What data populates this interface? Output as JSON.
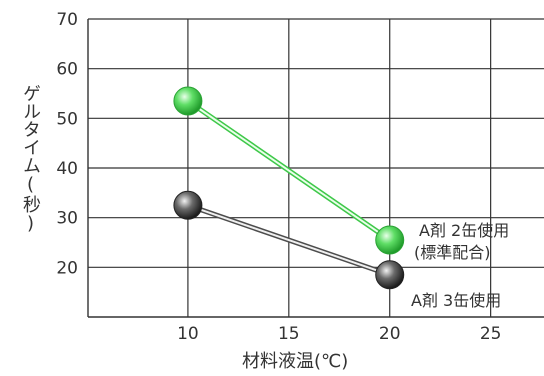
{
  "chart_data": {
    "type": "line",
    "xlabel": "材料液温(℃)",
    "ylabel": "ゲルタイム(秒)",
    "xlim": [
      5,
      27
    ],
    "ylim": [
      10,
      70
    ],
    "x_ticks": [
      10,
      15,
      20,
      25
    ],
    "y_ticks": [
      20,
      30,
      40,
      50,
      60,
      70
    ],
    "grid": true,
    "series": [
      {
        "name": "A剤 2缶使用",
        "name_line2": "(標準配合)",
        "color": "#3fc84a",
        "x": [
          10,
          20
        ],
        "y": [
          53.5,
          25.5
        ]
      },
      {
        "name": "A剤 3缶使用",
        "color": "#4d4d4d",
        "x": [
          10,
          20
        ],
        "y": [
          32.5,
          18.5
        ]
      }
    ]
  }
}
